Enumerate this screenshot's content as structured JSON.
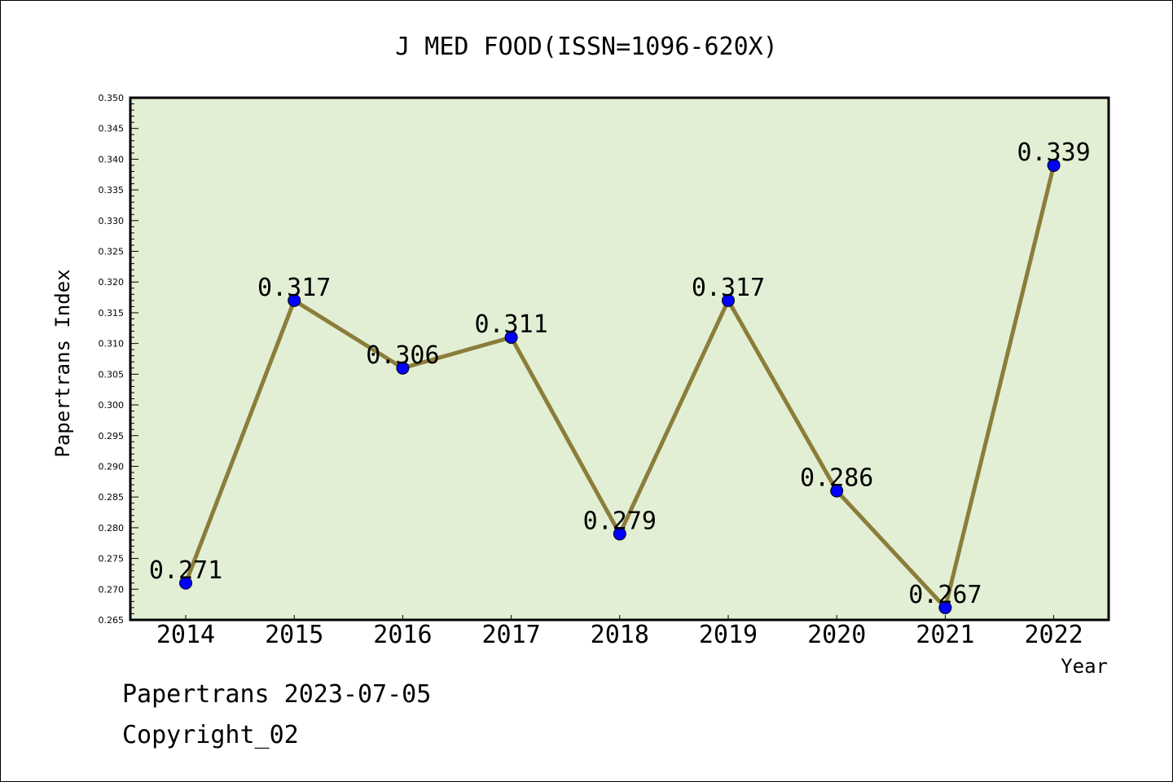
{
  "chart_data": {
    "type": "line",
    "title": "J MED FOOD(ISSN=1096-620X)",
    "xlabel": "Year",
    "ylabel": "Papertrans Index",
    "categories": [
      "2014",
      "2015",
      "2016",
      "2017",
      "2018",
      "2019",
      "2020",
      "2021",
      "2022"
    ],
    "series": [
      {
        "values": [
          0.271,
          0.317,
          0.306,
          0.311,
          0.279,
          0.317,
          0.286,
          0.267,
          0.339
        ],
        "data_labels": [
          "0.271",
          "0.317",
          "0.306",
          "0.311",
          "0.279",
          "0.317",
          "0.286",
          "0.267",
          "0.339"
        ]
      }
    ],
    "ylim": [
      0.265,
      0.35
    ],
    "yticks": [
      "0.265",
      "0.270",
      "0.275",
      "0.280",
      "0.285",
      "0.290",
      "0.295",
      "0.300",
      "0.305",
      "0.310",
      "0.315",
      "0.320",
      "0.325",
      "0.330",
      "0.335",
      "0.340",
      "0.345",
      "0.350"
    ],
    "grid": false,
    "colors": {
      "plot_background": "#e2efd4",
      "line": "#8b7d3a",
      "marker": "#0000ff"
    }
  },
  "footer": {
    "date_text": "Papertrans 2023-07-05",
    "copyright_text": "Copyright_02"
  }
}
